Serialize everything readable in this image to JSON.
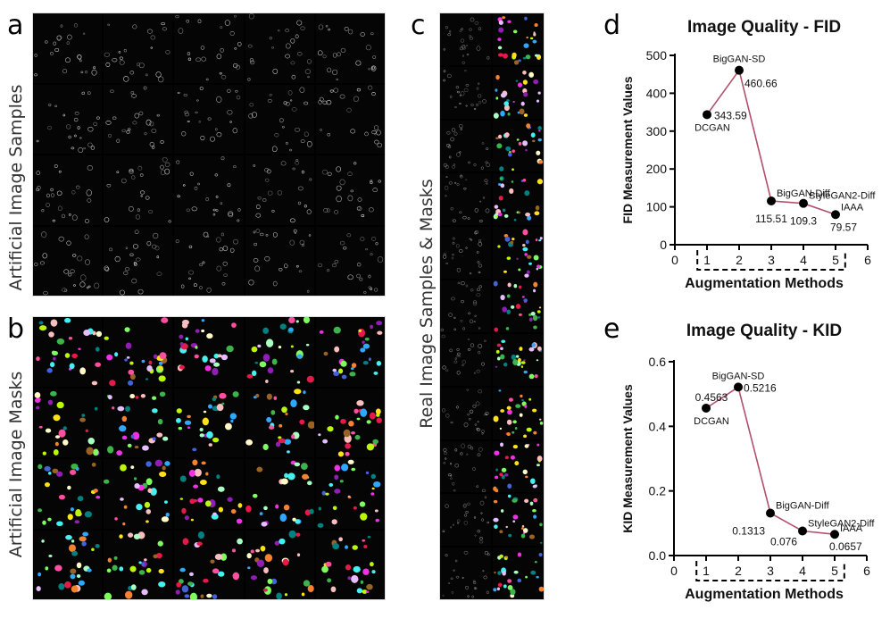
{
  "panels": {
    "a": {
      "letter": "a",
      "label": "Artificial Image Samples"
    },
    "b": {
      "letter": "b",
      "label": "Artificial Image Masks"
    },
    "c": {
      "letter": "c",
      "label": "Real Image Samples & Masks"
    },
    "d": {
      "letter": "d"
    },
    "e": {
      "letter": "e"
    }
  },
  "mask_colors": [
    "#e6194b",
    "#3cb44b",
    "#ffe119",
    "#4363d8",
    "#f58231",
    "#911eb4",
    "#46f0f0",
    "#f032e6",
    "#bcf60c",
    "#fabebe",
    "#008080",
    "#e6beff",
    "#9a6324",
    "#fffac8",
    "#aaffc3",
    "#ff4fa0",
    "#2fa8ff",
    "#7fff5f"
  ],
  "chart_data": [
    {
      "type": "line",
      "title": "Image Quality - FID",
      "xlabel": "Augmentation Methods",
      "ylabel": "FID Measurement Values",
      "x": [
        1,
        2,
        3,
        4,
        5
      ],
      "y": [
        343.59,
        460.66,
        115.51,
        109.3,
        79.57
      ],
      "point_names": [
        "DCGAN",
        "BigGAN-SD",
        "BigGAN-Diff",
        "StyleGAN2-Diff",
        "IAAA"
      ],
      "value_labels": [
        "343.59",
        "460.66",
        "115.51",
        "109.3",
        "79.57"
      ],
      "xlim": [
        0,
        6
      ],
      "ylim": [
        0,
        500
      ],
      "xticks": [
        "0",
        "1",
        "2",
        "3",
        "4",
        "5",
        "6"
      ],
      "yticks": [
        "0",
        "100",
        "200",
        "300",
        "400",
        "500"
      ],
      "line_color": "#b2506a",
      "marker_color": "#000000"
    },
    {
      "type": "line",
      "title": "Image Quality - KID",
      "xlabel": "Augmentation Methods",
      "ylabel": "KID Measurement Values",
      "x": [
        1,
        2,
        3,
        4,
        5
      ],
      "y": [
        0.4563,
        0.5216,
        0.1313,
        0.076,
        0.0657
      ],
      "point_names": [
        "DCGAN",
        "BigGAN-SD",
        "BigGAN-Diff",
        "StyleGAN2-Diff",
        "IAAA"
      ],
      "value_labels": [
        "0.4563",
        "0.5216",
        "0.1313",
        "0.076",
        "0.0657"
      ],
      "xlim": [
        0,
        6
      ],
      "ylim": [
        0,
        0.6
      ],
      "xticks": [
        "0",
        "1",
        "2",
        "3",
        "4",
        "5",
        "6"
      ],
      "yticks": [
        "0.0",
        "0.2",
        "0.4",
        "0.6"
      ],
      "line_color": "#b2506a",
      "marker_color": "#000000"
    }
  ]
}
